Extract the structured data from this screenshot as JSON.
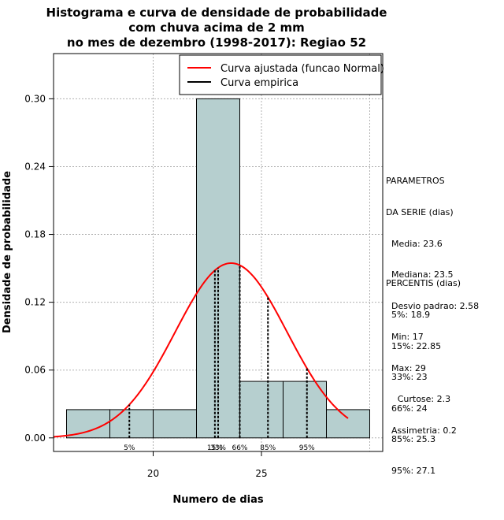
{
  "chart_data": {
    "type": "bar",
    "title_lines": [
      "Histograma e curva de densidade de probabilidade",
      "com chuva acima de 2 mm",
      "no mes de dezembro (1998-2017): Regiao 52"
    ],
    "xlabel": "Numero de dias",
    "ylabel": "Densidade de probabilidade",
    "xlim": [
      15.4,
      30.6
    ],
    "ylim": [
      -0.012,
      0.34
    ],
    "xticks": [
      20,
      25
    ],
    "yticks": [
      0.0,
      0.06,
      0.12,
      0.18,
      0.24,
      0.3
    ],
    "ytick_labels": [
      "0.00",
      "0.06",
      "0.12",
      "0.18",
      "0.24",
      "0.30"
    ],
    "grid_x": [
      20,
      25,
      30
    ],
    "bins": [
      {
        "start": 16,
        "end": 18,
        "density": 0.025
      },
      {
        "start": 18,
        "end": 20,
        "density": 0.025
      },
      {
        "start": 20,
        "end": 22,
        "density": 0.025
      },
      {
        "start": 22,
        "end": 24,
        "density": 0.3
      },
      {
        "start": 24,
        "end": 26,
        "density": 0.05
      },
      {
        "start": 26,
        "end": 28,
        "density": 0.05
      },
      {
        "start": 28,
        "end": 30,
        "density": 0.025
      }
    ],
    "normal_curve": {
      "mean": 23.6,
      "sd": 2.58,
      "x_range": [
        15.4,
        29
      ]
    },
    "percentile_lines": [
      {
        "label": "5%",
        "x": 18.9
      },
      {
        "label": "15%",
        "x": 22.85
      },
      {
        "label": "33%",
        "x": 23
      },
      {
        "label": "66%",
        "x": 24
      },
      {
        "label": "85%",
        "x": 25.3
      },
      {
        "label": "95%",
        "x": 27.1
      }
    ],
    "legend": [
      {
        "label": "Curva ajustada (funcao Normal)",
        "color": "#ff0000"
      },
      {
        "label": "Curva empirica",
        "color": "#000000"
      }
    ],
    "legend_position": "top-right",
    "colors": {
      "bar_fill": "#b6cfcf",
      "bar_stroke": "#000000",
      "curve": "#ff0000",
      "grid": "#b0b0b0"
    }
  },
  "side_panel": {
    "parametros": [
      "PARAMETROS",
      "DA SERIE (dias)",
      "  Media: 23.6",
      "  Mediana: 23.5",
      "  Desvio padrao: 2.58",
      "  Min: 17",
      "  Max: 29"
    ],
    "percentis": [
      "PERCENTIS (dias)",
      "  5%: 18.9",
      "  15%: 22.85",
      "  33%: 23",
      "  66%: 24",
      "  85%: 25.3",
      "  95%: 27.1"
    ],
    "shape": [
      "Curtose: 2.3",
      "Assimetria: 0.2"
    ]
  }
}
